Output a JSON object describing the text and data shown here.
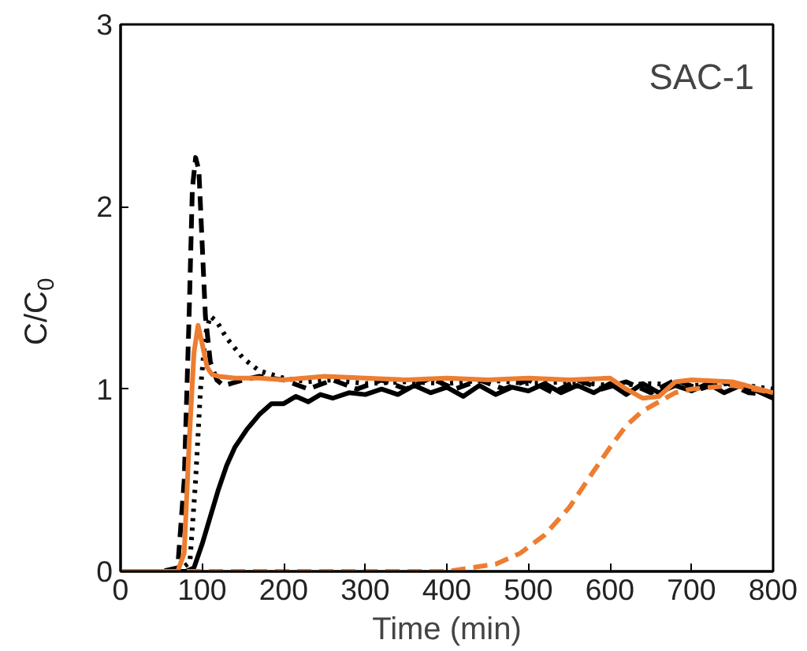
{
  "chart_data": {
    "type": "line",
    "xlabel": "Time (min)",
    "ylabel": "C/C$_{0}$",
    "xlim": [
      0,
      800
    ],
    "ylim": [
      0,
      3
    ],
    "xticks": [
      0,
      100,
      200,
      300,
      400,
      500,
      600,
      700,
      800
    ],
    "yticks": [
      0,
      1,
      2,
      3
    ],
    "grid": false,
    "annotations": [
      "SAC-1"
    ],
    "series": [
      {
        "color": "#000000",
        "line_style": "dashed",
        "x": [
          0,
          50,
          70,
          78,
          84,
          88,
          92,
          96,
          100,
          104,
          110,
          118,
          126,
          135,
          150,
          170,
          200,
          230,
          260,
          290,
          320,
          350,
          380,
          410,
          440,
          470,
          500,
          530,
          560,
          590,
          620,
          650,
          680,
          710,
          740,
          770,
          800
        ],
        "values": [
          0,
          0,
          0.02,
          0.5,
          1.4,
          2.1,
          2.27,
          2.2,
          1.8,
          1.4,
          1.15,
          1.05,
          1.02,
          1.03,
          1.05,
          1.07,
          1.05,
          1.0,
          1.05,
          1.0,
          1.05,
          1.0,
          1.06,
          1.0,
          1.05,
          1.0,
          1.05,
          0.98,
          1.05,
          1.0,
          1.04,
          0.98,
          1.05,
          1.0,
          1.04,
          0.98,
          0.97
        ]
      },
      {
        "color": "#000000",
        "line_style": "dotted",
        "x": [
          0,
          70,
          85,
          92,
          98,
          104,
          110,
          118,
          130,
          150,
          170,
          200,
          230,
          260,
          300,
          350,
          400,
          450,
          500,
          550,
          600,
          650,
          700,
          750,
          800
        ],
        "values": [
          0,
          0,
          0.05,
          0.5,
          1.0,
          1.3,
          1.4,
          1.37,
          1.28,
          1.17,
          1.1,
          1.06,
          1.04,
          1.05,
          1.03,
          1.04,
          1.03,
          1.05,
          1.03,
          1.04,
          1.02,
          1.03,
          1.02,
          1.03,
          1.0
        ]
      },
      {
        "color": "#000000",
        "line_style": "solid",
        "x": [
          0,
          80,
          90,
          100,
          110,
          120,
          130,
          140,
          155,
          170,
          185,
          200,
          215,
          230,
          245,
          260,
          280,
          300,
          320,
          340,
          360,
          380,
          400,
          420,
          440,
          460,
          480,
          500,
          520,
          540,
          560,
          580,
          600,
          620,
          640,
          660,
          680,
          700,
          720,
          740,
          760,
          780,
          800
        ],
        "values": [
          0,
          0,
          0.02,
          0.15,
          0.3,
          0.45,
          0.58,
          0.68,
          0.78,
          0.86,
          0.92,
          0.92,
          0.96,
          0.93,
          0.97,
          0.95,
          0.98,
          0.97,
          1.0,
          0.97,
          1.02,
          0.98,
          1.01,
          0.96,
          1.02,
          0.97,
          1.01,
          0.99,
          1.03,
          0.98,
          1.02,
          0.98,
          1.03,
          0.97,
          1.03,
          0.98,
          1.02,
          0.99,
          1.03,
          0.98,
          1.02,
          0.99,
          0.95
        ]
      },
      {
        "color": "#ed7d31",
        "line_style": "solid",
        "x": [
          0,
          70,
          78,
          84,
          90,
          95,
          100,
          106,
          112,
          120,
          140,
          170,
          200,
          250,
          300,
          350,
          400,
          450,
          500,
          550,
          600,
          620,
          640,
          660,
          680,
          700,
          750,
          800
        ],
        "values": [
          0,
          0,
          0.1,
          0.7,
          1.2,
          1.35,
          1.25,
          1.12,
          1.08,
          1.07,
          1.06,
          1.06,
          1.05,
          1.07,
          1.06,
          1.05,
          1.06,
          1.05,
          1.06,
          1.05,
          1.06,
          1.0,
          0.95,
          0.96,
          1.04,
          1.05,
          1.04,
          0.98
        ]
      },
      {
        "color": "#ed7d31",
        "line_style": "dashed",
        "x": [
          0,
          100,
          200,
          300,
          400,
          430,
          460,
          490,
          520,
          550,
          580,
          600,
          620,
          640,
          660,
          680,
          700,
          750,
          800
        ],
        "values": [
          0,
          0,
          0,
          0,
          0,
          0.02,
          0.04,
          0.1,
          0.2,
          0.35,
          0.55,
          0.68,
          0.8,
          0.88,
          0.93,
          0.98,
          1.0,
          1.02,
          0.98
        ]
      }
    ]
  }
}
